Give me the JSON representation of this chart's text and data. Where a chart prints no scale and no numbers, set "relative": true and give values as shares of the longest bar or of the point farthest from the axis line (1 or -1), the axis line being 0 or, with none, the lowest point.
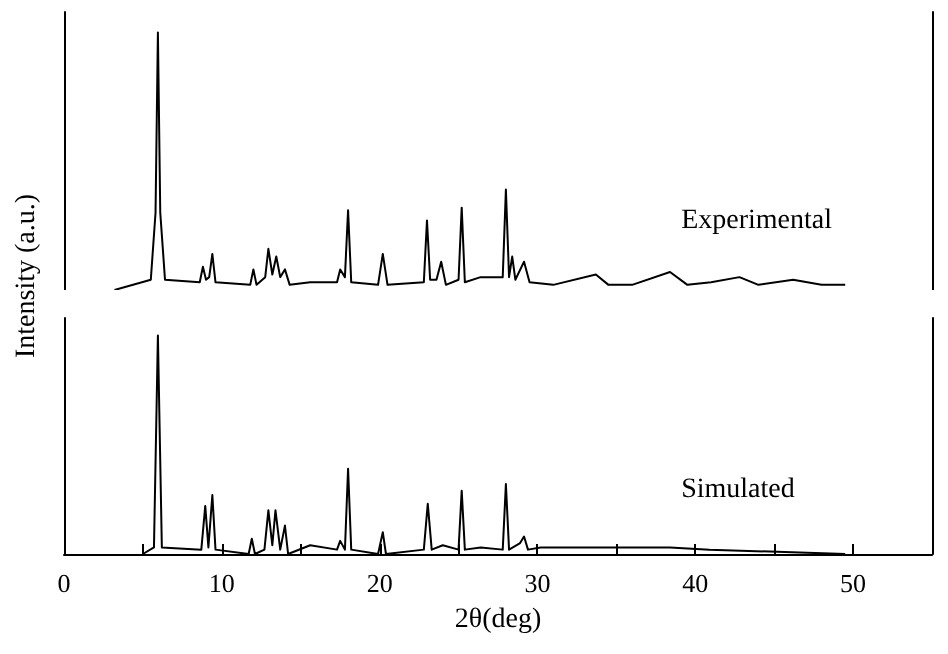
{
  "chart_data": [
    {
      "type": "line",
      "relative": true,
      "ylabel": "Intensity (a.u.)",
      "xlim": [
        0,
        55
      ],
      "tick_labels": false,
      "grid": false,
      "marker": "none",
      "line_style": "solid",
      "series": [
        {
          "name": "Experimental",
          "color": "#000000",
          "x": [
            3.2,
            5.5,
            5.8,
            5.95,
            6.1,
            6.4,
            8.6,
            8.8,
            9.0,
            9.2,
            9.4,
            9.6,
            11.8,
            12.0,
            12.2,
            12.75,
            12.95,
            13.2,
            13.45,
            13.7,
            14.0,
            14.3,
            15.6,
            17.3,
            17.5,
            17.8,
            18.0,
            18.2,
            19.9,
            20.2,
            20.5,
            22.8,
            23.0,
            23.2,
            23.6,
            23.9,
            24.2,
            25.0,
            25.2,
            25.4,
            26.4,
            27.8,
            28.0,
            28.2,
            28.4,
            28.6,
            29.15,
            29.5,
            31,
            33.7,
            34.5,
            36,
            38.4,
            39.5,
            41,
            42.8,
            44,
            46.2,
            48,
            49.5
          ],
          "values": [
            0,
            0.04,
            0.3,
            1,
            0.3,
            0.04,
            0.03,
            0.09,
            0.04,
            0.05,
            0.14,
            0.03,
            0.02,
            0.08,
            0.02,
            0.05,
            0.16,
            0.06,
            0.13,
            0.05,
            0.08,
            0.02,
            0.03,
            0.03,
            0.08,
            0.05,
            0.31,
            0.03,
            0.02,
            0.14,
            0.02,
            0.03,
            0.27,
            0.04,
            0.04,
            0.11,
            0.02,
            0.04,
            0.32,
            0.03,
            0.05,
            0.05,
            0.39,
            0.05,
            0.13,
            0.04,
            0.11,
            0.03,
            0.02,
            0.06,
            0.02,
            0.02,
            0.07,
            0.02,
            0.03,
            0.05,
            0.02,
            0.04,
            0.02,
            0.02
          ]
        }
      ]
    },
    {
      "type": "line",
      "relative": true,
      "xlabel": "2θ(deg)",
      "xlim": [
        0,
        55
      ],
      "xticks": [
        0,
        {
          "value": 5,
          "label": null
        },
        10,
        {
          "value": 15,
          "label": null
        },
        20,
        {
          "value": 25,
          "label": null
        },
        30,
        {
          "value": 35,
          "label": null
        },
        40,
        {
          "value": 45,
          "label": null
        },
        50
      ],
      "tick_labels": "x",
      "grid": false,
      "marker": "none",
      "line_style": "solid",
      "series": [
        {
          "name": "Simulated",
          "color": "#000000",
          "x": [
            5.0,
            5.7,
            5.95,
            6.2,
            8.7,
            8.95,
            9.15,
            9.4,
            9.6,
            11.7,
            11.9,
            12.1,
            12.7,
            12.95,
            13.2,
            13.4,
            13.7,
            14.0,
            14.2,
            15.6,
            17.3,
            17.5,
            17.8,
            18.0,
            18.2,
            19.9,
            20.2,
            20.4,
            22.8,
            23.05,
            23.3,
            24.0,
            25.0,
            25.2,
            25.4,
            26.4,
            27.8,
            28.0,
            28.2,
            28.9,
            29.15,
            29.4,
            30.2,
            33.7,
            38.4,
            40.9,
            49.5
          ],
          "values": [
            0,
            0.03,
            1,
            0.03,
            0.02,
            0.22,
            0.03,
            0.27,
            0.02,
            0,
            0.07,
            0,
            0.02,
            0.2,
            0.04,
            0.2,
            0.02,
            0.13,
            0,
            0.04,
            0.02,
            0.06,
            0.02,
            0.39,
            0.02,
            0,
            0.1,
            0,
            0.02,
            0.23,
            0.02,
            0.04,
            0.02,
            0.29,
            0.02,
            0.03,
            0.02,
            0.32,
            0.02,
            0.05,
            0.08,
            0.02,
            0.03,
            0.03,
            0.03,
            0.02,
            0
          ]
        }
      ]
    }
  ]
}
